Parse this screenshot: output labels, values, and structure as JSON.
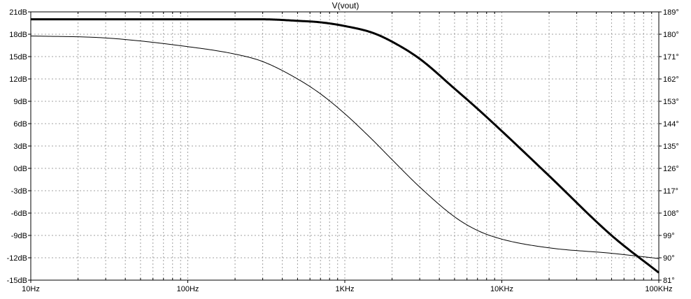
{
  "chart_data": {
    "type": "line",
    "title": "V(vout)",
    "x_scale": "log",
    "xlim": [
      10,
      100000
    ],
    "x_ticks": [
      10,
      100,
      1000,
      10000,
      100000
    ],
    "x_tick_labels": [
      "10Hz",
      "100Hz",
      "1KHz",
      "10KHz",
      "100KHz"
    ],
    "ylim_left": [
      -15,
      21
    ],
    "y_left_ticks": [
      21,
      18,
      15,
      12,
      9,
      6,
      3,
      0,
      -3,
      -6,
      -9,
      -12,
      -15
    ],
    "y_left_tick_labels": [
      "21dB",
      "18dB",
      "15dB",
      "12dB",
      "9dB",
      "6dB",
      "3dB",
      "0dB",
      "-3dB",
      "-6dB",
      "-9dB",
      "-12dB",
      "-15dB"
    ],
    "ylim_right": [
      81,
      189
    ],
    "y_right_ticks": [
      189,
      180,
      171,
      162,
      153,
      144,
      135,
      126,
      117,
      108,
      99,
      90,
      81
    ],
    "y_right_tick_labels": [
      "189°",
      "180°",
      "171°",
      "162°",
      "153°",
      "144°",
      "135°",
      "126°",
      "117°",
      "108°",
      "99°",
      "90°",
      "81°"
    ],
    "grid": true,
    "series": [
      {
        "axis": "left",
        "style": "thick",
        "color": "#000000",
        "x": [
          10,
          100,
          300,
          500,
          700,
          1000,
          1500,
          2000,
          3000,
          5000,
          7000,
          10000,
          20000,
          50000,
          100000
        ],
        "y": [
          20.0,
          20.0,
          20.0,
          19.8,
          19.6,
          19.1,
          18.2,
          17.0,
          14.7,
          10.7,
          8.0,
          5.0,
          -1.0,
          -9.0,
          -14.0
        ]
      },
      {
        "axis": "right",
        "style": "thin",
        "color": "#000000",
        "x": [
          10,
          30,
          100,
          200,
          300,
          500,
          700,
          1000,
          1500,
          2000,
          3000,
          5000,
          7000,
          10000,
          20000,
          50000,
          100000
        ],
        "y": [
          179.3,
          178.5,
          175.0,
          172.0,
          169.0,
          162.0,
          156.0,
          148.0,
          137.5,
          129.5,
          118.5,
          106.5,
          101.0,
          97.5,
          94.0,
          91.8,
          89.7
        ]
      }
    ]
  }
}
